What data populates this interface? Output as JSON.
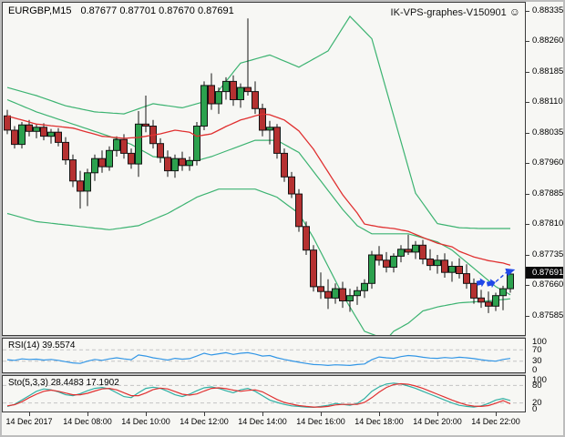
{
  "window": {
    "title_symbol": "EURGBP,M15",
    "title_ohlc": "0.87677 0.87701 0.87670 0.87691",
    "watermark": "IK-VPS-graphes-V150901",
    "watermark_icon": "smiley"
  },
  "colors": {
    "background": "#F7F7F4",
    "bull": "#2CA14E",
    "bear": "#B53131",
    "outline": "#141414",
    "band_green": "#3CB371",
    "ma_red": "#E03030",
    "rsi_blue": "#3296E6",
    "sto_k_teal": "#2FAFA3",
    "sto_d_red": "#E03030",
    "level_dash": "#C3C3C3",
    "marker_blue": "#2048E8",
    "price_tag_bg": "#0A0A0A",
    "price_tag_text": "#FFFFFF"
  },
  "price_axis": {
    "labels": [
      "0.88335",
      "0.88260",
      "0.88185",
      "0.88110",
      "0.88035",
      "0.87960",
      "0.87885",
      "0.87810",
      "0.87735",
      "0.87660",
      "0.87585"
    ],
    "values": [
      0.88335,
      0.8826,
      0.88185,
      0.8811,
      0.88035,
      0.8796,
      0.87885,
      0.8781,
      0.87735,
      0.8766,
      0.87585
    ],
    "current_label": "0.87691"
  },
  "rsi_panel": {
    "label": "RSI(14) 39.5574",
    "level_labels": [
      "100",
      "70",
      "30",
      "0"
    ],
    "level_values": [
      100,
      70,
      30,
      0
    ],
    "dashed_levels": [
      70,
      30
    ]
  },
  "sto_panel": {
    "label": "Sto(5,3,3) 28.4483 17.1902",
    "level_labels": [
      "100",
      "80",
      "20",
      "0"
    ],
    "level_values": [
      100,
      80,
      20,
      0
    ],
    "dashed_levels": [
      80,
      20
    ]
  },
  "chart_data": {
    "type": "candlestick",
    "symbol": "EURGBP",
    "timeframe": "M15",
    "title": "EURGBP,M15",
    "current_bar": {
      "open": 0.87677,
      "high": 0.87701,
      "low": 0.8767,
      "close": 0.87691
    },
    "price_range": {
      "min": 0.87585,
      "max": 0.88335,
      "tick_step": 0.00075
    },
    "legend_position": "none",
    "grid": "off",
    "time_labels": [
      "14 Dec 2017",
      "14 Dec 08:00",
      "14 Dec 10:00",
      "14 Dec 12:00",
      "14 Dec 14:00",
      "14 Dec 16:00",
      "14 Dec 18:00",
      "14 Dec 20:00",
      "14 Dec 22:00"
    ],
    "time_label_indices": [
      3,
      11,
      19,
      27,
      35,
      43,
      51,
      59,
      67
    ],
    "candles": [
      [
        0.8808,
        0.88095,
        0.88035,
        0.88045
      ],
      [
        0.88045,
        0.88055,
        0.88,
        0.8801
      ],
      [
        0.8801,
        0.88065,
        0.88,
        0.88058
      ],
      [
        0.88058,
        0.8807,
        0.8803,
        0.88042
      ],
      [
        0.88042,
        0.8806,
        0.88025,
        0.88052
      ],
      [
        0.88052,
        0.88062,
        0.8802,
        0.8803
      ],
      [
        0.8803,
        0.88048,
        0.88012,
        0.8804
      ],
      [
        0.8804,
        0.8805,
        0.88005,
        0.88015
      ],
      [
        0.88015,
        0.88028,
        0.8796,
        0.87972
      ],
      [
        0.87972,
        0.87985,
        0.87905,
        0.8792
      ],
      [
        0.8792,
        0.87945,
        0.87852,
        0.87895
      ],
      [
        0.87895,
        0.8795,
        0.87858,
        0.8794
      ],
      [
        0.8794,
        0.87985,
        0.8792,
        0.87975
      ],
      [
        0.87975,
        0.87995,
        0.8794,
        0.87955
      ],
      [
        0.87955,
        0.88005,
        0.87945,
        0.87995
      ],
      [
        0.87995,
        0.8803,
        0.8798,
        0.88022
      ],
      [
        0.88022,
        0.88035,
        0.87975,
        0.87988
      ],
      [
        0.87988,
        0.88,
        0.8795,
        0.87962
      ],
      [
        0.87962,
        0.88092,
        0.8793,
        0.8806
      ],
      [
        0.8806,
        0.8813,
        0.8804,
        0.88055
      ],
      [
        0.88055,
        0.8807,
        0.88,
        0.88012
      ],
      [
        0.88012,
        0.88025,
        0.87965,
        0.87978
      ],
      [
        0.87978,
        0.87995,
        0.8793,
        0.87945
      ],
      [
        0.87945,
        0.87985,
        0.87928,
        0.87975
      ],
      [
        0.87975,
        0.87992,
        0.87945,
        0.87958
      ],
      [
        0.87958,
        0.8798,
        0.87945,
        0.8797
      ],
      [
        0.8797,
        0.88065,
        0.87958,
        0.88055
      ],
      [
        0.88055,
        0.88165,
        0.88045,
        0.88155
      ],
      [
        0.88155,
        0.88185,
        0.88095,
        0.8811
      ],
      [
        0.8811,
        0.8815,
        0.88085,
        0.8814
      ],
      [
        0.8814,
        0.88175,
        0.8812,
        0.88165
      ],
      [
        0.88165,
        0.8818,
        0.88105,
        0.8812
      ],
      [
        0.8812,
        0.8816,
        0.881,
        0.8815
      ],
      [
        0.8815,
        0.8832,
        0.8813,
        0.8814
      ],
      [
        0.8814,
        0.88165,
        0.88085,
        0.88098
      ],
      [
        0.88098,
        0.8811,
        0.8803,
        0.88045
      ],
      [
        0.88045,
        0.88068,
        0.8801,
        0.88052
      ],
      [
        0.88052,
        0.8806,
        0.87975,
        0.87988
      ],
      [
        0.87988,
        0.88,
        0.87918,
        0.8793
      ],
      [
        0.8793,
        0.87942,
        0.87878,
        0.87888
      ],
      [
        0.87888,
        0.879,
        0.87795,
        0.87808
      ],
      [
        0.87808,
        0.8782,
        0.87738,
        0.8775
      ],
      [
        0.8775,
        0.87762,
        0.87648,
        0.8766
      ],
      [
        0.8766,
        0.87695,
        0.8763,
        0.87648
      ],
      [
        0.87648,
        0.87678,
        0.87605,
        0.87632
      ],
      [
        0.87632,
        0.87668,
        0.87618,
        0.87655
      ],
      [
        0.87655,
        0.87672,
        0.87608,
        0.87625
      ],
      [
        0.87625,
        0.87655,
        0.87598,
        0.87638
      ],
      [
        0.87638,
        0.8766,
        0.87615,
        0.8765
      ],
      [
        0.8765,
        0.87678,
        0.87632,
        0.87668
      ],
      [
        0.87668,
        0.87748,
        0.87655,
        0.87738
      ],
      [
        0.87738,
        0.8776,
        0.87712,
        0.87725
      ],
      [
        0.87725,
        0.87745,
        0.87695,
        0.87708
      ],
      [
        0.87708,
        0.87742,
        0.87695,
        0.87735
      ],
      [
        0.87735,
        0.87762,
        0.8772,
        0.87752
      ],
      [
        0.87752,
        0.87788,
        0.87738,
        0.87745
      ],
      [
        0.87745,
        0.87772,
        0.87728,
        0.87762
      ],
      [
        0.87762,
        0.87775,
        0.87715,
        0.87728
      ],
      [
        0.87728,
        0.87752,
        0.877,
        0.87712
      ],
      [
        0.87712,
        0.87738,
        0.87692,
        0.87725
      ],
      [
        0.87725,
        0.87742,
        0.87682,
        0.87695
      ],
      [
        0.87695,
        0.87722,
        0.87672,
        0.8771
      ],
      [
        0.8771,
        0.8773,
        0.8768,
        0.87692
      ],
      [
        0.87692,
        0.87715,
        0.87655,
        0.87668
      ],
      [
        0.87668,
        0.8768,
        0.87618,
        0.87632
      ],
      [
        0.87632,
        0.87652,
        0.87608,
        0.87622
      ],
      [
        0.87622,
        0.87648,
        0.87595,
        0.87612
      ],
      [
        0.87612,
        0.87645,
        0.876,
        0.87638
      ],
      [
        0.87638,
        0.87662,
        0.87602,
        0.87655
      ],
      [
        0.87655,
        0.877,
        0.87645,
        0.87691
      ]
    ],
    "bollinger_upper": [
      [
        0,
        0.8815
      ],
      [
        4,
        0.8813
      ],
      [
        8,
        0.88105
      ],
      [
        12,
        0.8809
      ],
      [
        16,
        0.88085
      ],
      [
        20,
        0.8811
      ],
      [
        24,
        0.881
      ],
      [
        28,
        0.8812
      ],
      [
        32,
        0.8821
      ],
      [
        36,
        0.8823
      ],
      [
        40,
        0.882
      ],
      [
        44,
        0.8824
      ],
      [
        47,
        0.88325
      ],
      [
        50,
        0.8827
      ],
      [
        53,
        0.8808
      ],
      [
        56,
        0.8789
      ],
      [
        59,
        0.87815
      ],
      [
        62,
        0.87805
      ],
      [
        65,
        0.87803
      ],
      [
        69,
        0.87803
      ]
    ],
    "bollinger_middle": [
      [
        0,
        0.8812
      ],
      [
        4,
        0.8809
      ],
      [
        9,
        0.8806
      ],
      [
        14,
        0.8803
      ],
      [
        17,
        0.8801
      ],
      [
        20,
        0.8798
      ],
      [
        24,
        0.8797
      ],
      [
        26,
        0.8797
      ],
      [
        28,
        0.8798
      ],
      [
        31,
        0.88
      ],
      [
        34,
        0.8802
      ],
      [
        37,
        0.8802
      ],
      [
        40,
        0.8799
      ],
      [
        43,
        0.8792
      ],
      [
        46,
        0.8785
      ],
      [
        48,
        0.8781
      ],
      [
        50,
        0.8779
      ],
      [
        55,
        0.8779
      ],
      [
        57,
        0.8778
      ],
      [
        59,
        0.8777
      ],
      [
        61,
        0.8775
      ],
      [
        63,
        0.8772
      ],
      [
        65,
        0.8769
      ],
      [
        67,
        0.8766
      ],
      [
        69,
        0.8764
      ]
    ],
    "bollinger_lower": [
      [
        0,
        0.8784
      ],
      [
        4,
        0.8782
      ],
      [
        9,
        0.8781
      ],
      [
        14,
        0.878
      ],
      [
        18,
        0.8781
      ],
      [
        22,
        0.8784
      ],
      [
        26,
        0.8788
      ],
      [
        29,
        0.879
      ],
      [
        34,
        0.879
      ],
      [
        37,
        0.8788
      ],
      [
        40,
        0.8784
      ],
      [
        42,
        0.8778
      ],
      [
        44,
        0.8771
      ],
      [
        46,
        0.8764
      ],
      [
        48,
        0.8758
      ],
      [
        49,
        0.8755
      ],
      [
        52,
        0.8753
      ],
      [
        53,
        0.8755
      ],
      [
        55,
        0.8757
      ],
      [
        57,
        0.876
      ],
      [
        59,
        0.8761
      ],
      [
        62,
        0.8762
      ],
      [
        66,
        0.87625
      ],
      [
        69,
        0.8763
      ]
    ],
    "ma_red": [
      [
        0,
        0.8808
      ],
      [
        4,
        0.8806
      ],
      [
        9,
        0.8805
      ],
      [
        13,
        0.8803
      ],
      [
        16,
        0.88025
      ],
      [
        18,
        0.88027
      ],
      [
        21,
        0.88036
      ],
      [
        23,
        0.88045
      ],
      [
        25,
        0.8804
      ],
      [
        26,
        0.8803
      ],
      [
        28,
        0.88036
      ],
      [
        30,
        0.88054
      ],
      [
        32,
        0.8807
      ],
      [
        34,
        0.8808
      ],
      [
        35,
        0.88085
      ],
      [
        36,
        0.88083
      ],
      [
        38,
        0.8807
      ],
      [
        40,
        0.88043
      ],
      [
        42,
        0.87998
      ],
      [
        44,
        0.87942
      ],
      [
        46,
        0.87886
      ],
      [
        48,
        0.87841
      ],
      [
        49,
        0.87814
      ],
      [
        51,
        0.87807
      ],
      [
        53,
        0.87803
      ],
      [
        55,
        0.87796
      ],
      [
        57,
        0.87781
      ],
      [
        59,
        0.87767
      ],
      [
        61,
        0.87758
      ],
      [
        62,
        0.87747
      ],
      [
        64,
        0.87733
      ],
      [
        66,
        0.87724
      ],
      [
        68,
        0.87718
      ],
      [
        69,
        0.87713
      ]
    ],
    "rsi": {
      "period": 14,
      "current": 39.5574,
      "values": [
        35,
        33,
        38,
        36,
        37,
        34,
        36,
        33,
        28,
        24,
        22,
        30,
        36,
        33,
        38,
        42,
        38,
        35,
        52,
        48,
        42,
        38,
        34,
        40,
        37,
        39,
        48,
        58,
        52,
        56,
        60,
        54,
        58,
        60,
        55,
        48,
        50,
        42,
        36,
        31,
        26,
        22,
        18,
        17,
        15,
        17,
        16,
        15,
        18,
        20,
        35,
        45,
        42,
        40,
        46,
        50,
        48,
        44,
        41,
        40,
        43,
        41,
        44,
        42,
        39,
        35,
        32,
        30,
        36,
        39.6
      ]
    },
    "stochastic": {
      "params": "5,3,3",
      "k_current": 28.4483,
      "d_current": 17.1902,
      "k": [
        8,
        15,
        30,
        45,
        60,
        68,
        65,
        58,
        48,
        45,
        52,
        62,
        70,
        73,
        68,
        55,
        42,
        38,
        55,
        70,
        74,
        70,
        60,
        48,
        42,
        50,
        62,
        72,
        75,
        70,
        62,
        55,
        65,
        70,
        60,
        45,
        30,
        22,
        15,
        10,
        8,
        6,
        5,
        8,
        12,
        18,
        15,
        12,
        18,
        35,
        60,
        75,
        85,
        88,
        85,
        78,
        70,
        60,
        50,
        40,
        30,
        20,
        12,
        8,
        6,
        10,
        18,
        30,
        35,
        28.4
      ],
      "d": [
        10,
        14,
        24,
        38,
        50,
        60,
        64,
        60,
        54,
        48,
        48,
        53,
        61,
        68,
        70,
        65,
        55,
        45,
        45,
        54,
        66,
        71,
        68,
        59,
        50,
        47,
        51,
        61,
        70,
        72,
        69,
        64,
        60,
        63,
        65,
        58,
        45,
        32,
        22,
        16,
        11,
        8,
        6,
        6,
        8,
        13,
        15,
        15,
        15,
        22,
        38,
        57,
        73,
        83,
        86,
        84,
        78,
        70,
        60,
        50,
        40,
        30,
        21,
        13,
        9,
        8,
        11,
        19,
        28,
        17.2
      ]
    },
    "markers": {
      "arrows": [
        {
          "i": 64.9,
          "price": 0.87668
        },
        {
          "i": 66.3,
          "price": 0.87666
        }
      ],
      "dashed_from": {
        "i": 67.0,
        "price": 0.87672
      },
      "dashed_to": {
        "i": 69.3,
        "price": 0.877
      }
    }
  }
}
